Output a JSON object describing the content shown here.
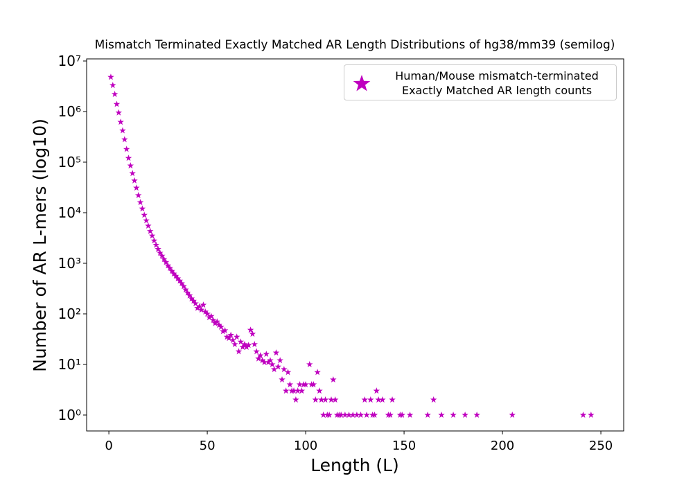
{
  "chart_data": {
    "type": "scatter",
    "title": "Mismatch Terminated Exactly Matched AR Length Distributions of hg38/mm39 (semilog)",
    "x_label": "Length (L)",
    "y_label": "Number of AR L-mers (log10)",
    "y_log": true,
    "marker": "star",
    "legend_position": "upper right",
    "series": [
      {
        "name": "Human/Mouse mismatch-terminated\n Exactly Matched AR length counts",
        "color": "#bf00bf",
        "x": [
          1,
          2,
          3,
          4,
          5,
          6,
          7,
          8,
          9,
          10,
          11,
          12,
          13,
          14,
          15,
          16,
          17,
          18,
          19,
          20,
          21,
          22,
          23,
          24,
          25,
          26,
          27,
          28,
          29,
          30,
          31,
          32,
          33,
          34,
          35,
          36,
          37,
          38,
          39,
          40,
          41,
          42,
          43,
          44,
          45,
          46,
          47,
          48,
          49,
          50,
          51,
          52,
          53,
          54,
          55,
          56,
          57,
          58,
          59,
          60,
          61,
          62,
          63,
          64,
          65,
          66,
          67,
          68,
          69,
          70,
          71,
          72,
          73,
          74,
          75,
          76,
          77,
          78,
          79,
          80,
          81,
          82,
          83,
          84,
          85,
          86,
          87,
          88,
          89,
          90,
          91,
          92,
          93,
          94,
          95,
          96,
          97,
          98,
          99,
          100,
          102,
          103,
          104,
          105,
          106,
          107,
          108,
          109,
          110,
          111,
          112,
          113,
          114,
          115,
          116,
          117,
          118,
          120,
          122,
          124,
          126,
          128,
          130,
          131,
          133,
          134,
          135,
          136,
          137,
          139,
          142,
          143,
          144,
          148,
          149,
          153,
          162,
          165,
          169,
          175,
          181,
          187,
          205,
          241,
          245
        ],
        "values": [
          4800000,
          3300000,
          2200000,
          1400000,
          950000,
          620000,
          420000,
          280000,
          180000,
          120000,
          85000,
          60000,
          43000,
          31000,
          22000,
          16000,
          12000,
          9000,
          7000,
          5500,
          4300,
          3500,
          2800,
          2300,
          1900,
          1600,
          1400,
          1200,
          1050,
          900,
          800,
          700,
          620,
          560,
          500,
          450,
          400,
          350,
          300,
          260,
          230,
          200,
          180,
          160,
          130,
          140,
          120,
          150,
          110,
          100,
          85,
          90,
          75,
          65,
          70,
          60,
          55,
          45,
          47,
          35,
          33,
          38,
          30,
          25,
          35,
          18,
          28,
          22,
          25,
          22,
          24,
          48,
          40,
          25,
          18,
          13,
          15,
          12,
          11,
          16,
          11,
          12,
          10,
          8,
          17,
          9,
          12,
          5,
          8,
          3,
          7,
          4,
          3,
          3,
          2,
          3,
          4,
          3,
          4,
          4,
          10,
          4,
          4,
          2,
          7,
          3,
          2,
          1,
          2,
          1,
          1,
          2,
          5,
          2,
          1,
          1,
          1,
          1,
          1,
          1,
          1,
          1,
          2,
          1,
          2,
          1,
          1,
          3,
          2,
          2,
          1,
          1,
          2,
          1,
          1,
          1,
          1,
          2,
          1,
          1,
          1,
          1,
          1,
          1,
          1
        ]
      }
    ],
    "xlim": [
      -11.3,
      261.6
    ],
    "xticks": [
      0,
      50,
      100,
      150,
      200,
      250
    ],
    "ylim": [
      0.484,
      11000000
    ],
    "yticks": [
      {
        "value": 1,
        "label": "10⁰"
      },
      {
        "value": 10,
        "label": "10¹"
      },
      {
        "value": 100,
        "label": "10²"
      },
      {
        "value": 1000,
        "label": "10³"
      },
      {
        "value": 10000,
        "label": "10⁴"
      },
      {
        "value": 100000,
        "label": "10⁵"
      },
      {
        "value": 1000000,
        "label": "10⁶"
      },
      {
        "value": 10000000,
        "label": "10⁷"
      }
    ]
  }
}
